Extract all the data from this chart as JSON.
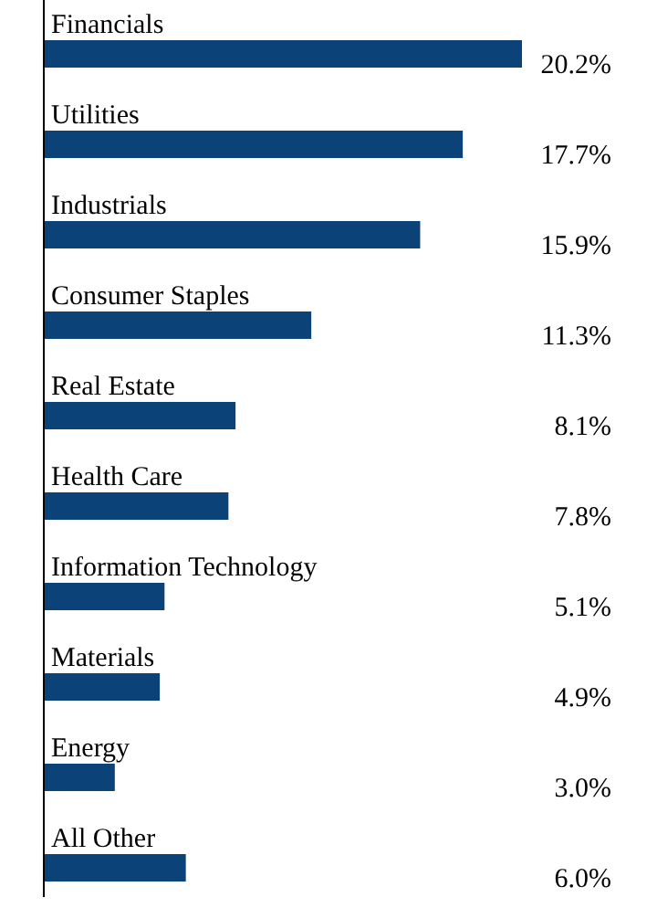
{
  "chart_data": {
    "type": "bar",
    "orientation": "horizontal",
    "categories": [
      "Financials",
      "Utilities",
      "Industrials",
      "Consumer Staples",
      "Real Estate",
      "Health Care",
      "Information Technology",
      "Materials",
      "Energy",
      "All Other"
    ],
    "values": [
      20.2,
      17.7,
      15.9,
      11.3,
      8.1,
      7.8,
      5.1,
      4.9,
      3.0,
      6.0
    ],
    "value_labels": [
      "20.2%",
      "17.7%",
      "15.9%",
      "11.3%",
      "8.1%",
      "7.8%",
      "5.1%",
      "4.9%",
      "3.0%",
      "6.0%"
    ],
    "color": "#0b4277"
  }
}
